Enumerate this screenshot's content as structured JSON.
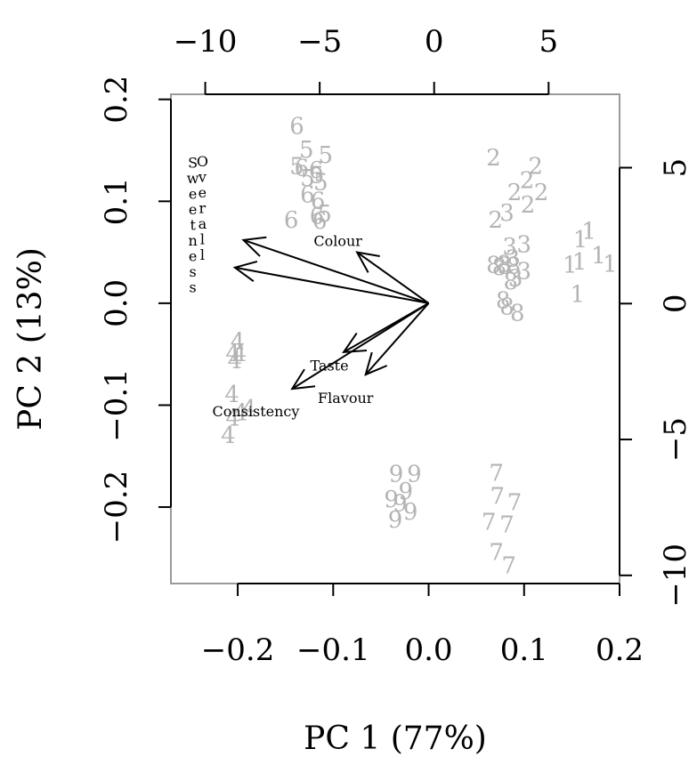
{
  "chart_data": {
    "type": "scatter",
    "subtype": "biplot",
    "title": "",
    "xlabel": "PC 1 (77%)",
    "ylabel": "PC 2 (13%)",
    "xlim": [
      -0.27,
      0.2
    ],
    "ylim": [
      -0.275,
      0.205
    ],
    "x_ticks": [
      -0.2,
      -0.1,
      0.0,
      0.1,
      0.2
    ],
    "x_tick_labels": [
      "−0.2",
      "−0.1",
      "0.0",
      "0.1",
      "0.2"
    ],
    "y_ticks": [
      -0.2,
      -0.1,
      0.0,
      0.1,
      0.2
    ],
    "y_tick_labels": [
      "−0.2",
      "−0.1",
      "0.0",
      "0.1",
      "0.2"
    ],
    "top_axis": {
      "lim": [
        -11.5,
        8.1
      ],
      "ticks": [
        -10,
        -5,
        0,
        5
      ],
      "tick_labels": [
        "−10",
        "−5",
        "0",
        "5"
      ]
    },
    "right_axis": {
      "lim": [
        -10.3,
        7.7
      ],
      "ticks": [
        -10,
        -5,
        0,
        5
      ],
      "tick_labels": [
        "−10",
        "−5",
        "0",
        "5"
      ]
    },
    "grid": false,
    "point_color": "#b4b4b4",
    "arrow_color": "#000000",
    "points": [
      {
        "label": "1",
        "x": 0.168,
        "y": 0.07
      },
      {
        "label": "1",
        "x": 0.159,
        "y": 0.062
      },
      {
        "label": "1",
        "x": 0.158,
        "y": 0.04
      },
      {
        "label": "1",
        "x": 0.178,
        "y": 0.046
      },
      {
        "label": "1",
        "x": 0.19,
        "y": 0.038
      },
      {
        "label": "1",
        "x": 0.148,
        "y": 0.037
      },
      {
        "label": "1",
        "x": 0.156,
        "y": 0.008
      },
      {
        "label": "2",
        "x": 0.068,
        "y": 0.142
      },
      {
        "label": "2",
        "x": 0.112,
        "y": 0.134
      },
      {
        "label": "2",
        "x": 0.103,
        "y": 0.12
      },
      {
        "label": "2",
        "x": 0.09,
        "y": 0.108
      },
      {
        "label": "2",
        "x": 0.118,
        "y": 0.108
      },
      {
        "label": "2",
        "x": 0.104,
        "y": 0.096
      },
      {
        "label": "2",
        "x": 0.07,
        "y": 0.081
      },
      {
        "label": "3",
        "x": 0.082,
        "y": 0.088
      },
      {
        "label": "3",
        "x": 0.085,
        "y": 0.055
      },
      {
        "label": "3",
        "x": 0.1,
        "y": 0.057
      },
      {
        "label": "3",
        "x": 0.088,
        "y": 0.043
      },
      {
        "label": "3",
        "x": 0.08,
        "y": 0.036
      },
      {
        "label": "3",
        "x": 0.1,
        "y": 0.031
      },
      {
        "label": "3",
        "x": 0.091,
        "y": 0.024
      },
      {
        "label": "8",
        "x": 0.068,
        "y": 0.037
      },
      {
        "label": "8",
        "x": 0.074,
        "y": 0.035
      },
      {
        "label": "8",
        "x": 0.079,
        "y": 0.038
      },
      {
        "label": "8",
        "x": 0.089,
        "y": 0.036
      },
      {
        "label": "8",
        "x": 0.086,
        "y": 0.021
      },
      {
        "label": "8",
        "x": 0.078,
        "y": 0.002
      },
      {
        "label": "8",
        "x": 0.082,
        "y": -0.004
      },
      {
        "label": "8",
        "x": 0.093,
        "y": -0.01
      },
      {
        "label": "4",
        "x": -0.2,
        "y": -0.038
      },
      {
        "label": "4",
        "x": -0.205,
        "y": -0.05
      },
      {
        "label": "4",
        "x": -0.198,
        "y": -0.05
      },
      {
        "label": "4",
        "x": -0.203,
        "y": -0.057
      },
      {
        "label": "4",
        "x": -0.206,
        "y": -0.09
      },
      {
        "label": "4",
        "x": -0.188,
        "y": -0.104
      },
      {
        "label": "4",
        "x": -0.205,
        "y": -0.113
      },
      {
        "label": "4",
        "x": -0.197,
        "y": -0.108
      },
      {
        "label": "4",
        "x": -0.21,
        "y": -0.13
      },
      {
        "label": "5",
        "x": -0.128,
        "y": 0.15
      },
      {
        "label": "5",
        "x": -0.108,
        "y": 0.145
      },
      {
        "label": "5",
        "x": -0.138,
        "y": 0.134
      },
      {
        "label": "5",
        "x": -0.117,
        "y": 0.125
      },
      {
        "label": "5",
        "x": -0.127,
        "y": 0.122
      },
      {
        "label": "5",
        "x": -0.113,
        "y": 0.118
      },
      {
        "label": "5",
        "x": -0.109,
        "y": 0.087
      },
      {
        "label": "6",
        "x": -0.138,
        "y": 0.173
      },
      {
        "label": "6",
        "x": -0.133,
        "y": 0.132
      },
      {
        "label": "6",
        "x": -0.118,
        "y": 0.13
      },
      {
        "label": "6",
        "x": -0.116,
        "y": 0.1
      },
      {
        "label": "6",
        "x": -0.127,
        "y": 0.106
      },
      {
        "label": "6",
        "x": -0.117,
        "y": 0.085
      },
      {
        "label": "6",
        "x": -0.144,
        "y": 0.081
      },
      {
        "label": "6",
        "x": -0.114,
        "y": 0.08
      },
      {
        "label": "7",
        "x": 0.071,
        "y": -0.167
      },
      {
        "label": "7",
        "x": 0.072,
        "y": -0.19
      },
      {
        "label": "7",
        "x": 0.09,
        "y": -0.196
      },
      {
        "label": "7",
        "x": 0.063,
        "y": -0.215
      },
      {
        "label": "7",
        "x": 0.082,
        "y": -0.218
      },
      {
        "label": "7",
        "x": 0.071,
        "y": -0.245
      },
      {
        "label": "7",
        "x": 0.084,
        "y": -0.258
      },
      {
        "label": "9",
        "x": -0.034,
        "y": -0.168
      },
      {
        "label": "9",
        "x": -0.015,
        "y": -0.168
      },
      {
        "label": "9",
        "x": -0.024,
        "y": -0.185
      },
      {
        "label": "9",
        "x": -0.039,
        "y": -0.193
      },
      {
        "label": "9",
        "x": -0.03,
        "y": -0.197
      },
      {
        "label": "9",
        "x": -0.019,
        "y": -0.205
      },
      {
        "label": "9",
        "x": -0.035,
        "y": -0.213
      }
    ],
    "arrows": [
      {
        "label": "Sweetness",
        "x": -0.194,
        "y": 0.062
      },
      {
        "label": "Overall",
        "x": -0.203,
        "y": 0.035
      },
      {
        "label": "Colour",
        "x": -0.075,
        "y": 0.05
      },
      {
        "label": "Taste",
        "x": -0.089,
        "y": -0.048
      },
      {
        "label": "Flavour",
        "x": -0.066,
        "y": -0.07
      },
      {
        "label": "Consistency",
        "x": -0.143,
        "y": -0.084
      }
    ],
    "arrow_labels": {
      "Sweetness": {
        "x": -0.247,
        "y": 0.138,
        "vertical": true
      },
      "Overall": {
        "x": -0.237,
        "y": 0.139,
        "vertical": true
      },
      "Colour": {
        "x": -0.095,
        "y": 0.061
      },
      "Taste": {
        "x": -0.104,
        "y": -0.061
      },
      "Flavour": {
        "x": -0.087,
        "y": -0.093
      },
      "Consistency": {
        "x": -0.181,
        "y": -0.106
      }
    }
  }
}
